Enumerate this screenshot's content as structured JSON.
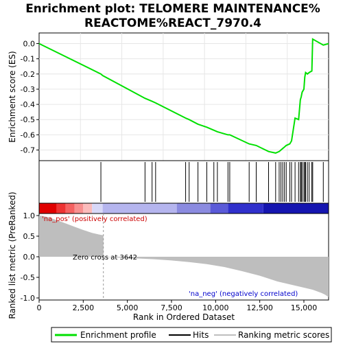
{
  "title_line1": "Enrichment plot: TELOMERE MAINTENANCE%",
  "title_line2": "REACTOME%REACT_7970.4",
  "chart_data": [
    {
      "type": "line",
      "panel": "enrichment-score",
      "ylabel": "Enrichment score (ES)",
      "ylim": [
        -0.77,
        0.07
      ],
      "yticks": [
        0.0,
        -0.1,
        -0.2,
        -0.3,
        -0.4,
        -0.5,
        -0.6,
        -0.7
      ],
      "ytick_labels": [
        "0.0",
        "-0.1",
        "-0.2",
        "-0.3",
        "-0.4",
        "-0.5",
        "-0.6",
        "-0.7"
      ],
      "xlim": [
        0,
        16400
      ],
      "grid": true,
      "color": "#00e000",
      "series": [
        {
          "name": "Enrichment profile",
          "x": [
            0,
            3500,
            3600,
            6000,
            6400,
            6600,
            8300,
            8500,
            9000,
            9500,
            9900,
            10100,
            10700,
            10800,
            11900,
            12300,
            13000,
            13400,
            13600,
            13700,
            13800,
            13900,
            14000,
            14200,
            14300,
            14500,
            14700,
            14800,
            14850,
            14900,
            15000,
            15050,
            15100,
            15200,
            15300,
            15450,
            15500,
            16100,
            16400
          ],
          "y": [
            0.0,
            -0.2,
            -0.21,
            -0.36,
            -0.38,
            -0.39,
            -0.49,
            -0.5,
            -0.53,
            -0.55,
            -0.57,
            -0.58,
            -0.6,
            -0.6,
            -0.66,
            -0.67,
            -0.71,
            -0.72,
            -0.71,
            -0.7,
            -0.69,
            -0.68,
            -0.67,
            -0.66,
            -0.64,
            -0.49,
            -0.5,
            -0.37,
            -0.35,
            -0.32,
            -0.3,
            -0.22,
            -0.19,
            -0.2,
            -0.19,
            -0.18,
            0.03,
            -0.01,
            0.0
          ]
        }
      ]
    },
    {
      "type": "scatter",
      "panel": "hits",
      "legend_label": "Hits",
      "x": [
        3500,
        6000,
        6400,
        6600,
        8300,
        8500,
        9000,
        9500,
        9900,
        10100,
        10700,
        10800,
        11900,
        12300,
        13000,
        13400,
        13600,
        13700,
        13800,
        13900,
        14000,
        14200,
        14300,
        14500,
        14700,
        14800,
        14850,
        14900,
        15000,
        15050,
        15100,
        15200,
        15300,
        15450,
        15500,
        16100,
        16400
      ]
    },
    {
      "type": "heatmap",
      "panel": "rank-color-bar",
      "colors": [
        "#e00000",
        "#ee3333",
        "#f56262",
        "#f89090",
        "#fbbbbb",
        "#d8d8f8",
        "#b5b5ee",
        "#8b8be0",
        "#5a5ad8",
        "#3030cc",
        "#1515b0"
      ],
      "breaks": [
        0,
        1000,
        1500,
        2000,
        2500,
        3000,
        3600,
        7800,
        9700,
        10700,
        12700,
        16400
      ]
    },
    {
      "type": "area",
      "panel": "ranked-metric",
      "xlabel": "Rank in Ordered Dataset",
      "ylabel": "Ranked list metric (PreRanked)",
      "ylim": [
        -1.05,
        1.05
      ],
      "yticks": [
        1.0,
        0.5,
        0.0,
        -0.5,
        -1.0
      ],
      "ytick_labels": [
        "1.0",
        "0.5",
        "0.0",
        "-0.5",
        "-1.0"
      ],
      "xlim": [
        0,
        16400
      ],
      "xticks": [
        0,
        2500,
        5000,
        7500,
        10000,
        12500,
        15000
      ],
      "xtick_labels": [
        "0",
        "2,500",
        "5,000",
        "7,500",
        "10,000",
        "12,500",
        "15,000"
      ],
      "color": "#bebebe",
      "x": [
        0,
        200,
        500,
        1000,
        1500,
        2000,
        2500,
        3000,
        3400,
        3640,
        3650,
        4500,
        5500,
        6500,
        7500,
        8500,
        9500,
        10500,
        11500,
        12500,
        13500,
        14500,
        15000,
        15500,
        16000,
        16200,
        16400
      ],
      "y": [
        1.0,
        0.99,
        0.96,
        0.89,
        0.81,
        0.73,
        0.65,
        0.58,
        0.54,
        0.52,
        0.0,
        -0.02,
        -0.04,
        -0.06,
        -0.09,
        -0.13,
        -0.18,
        -0.25,
        -0.35,
        -0.46,
        -0.6,
        -0.7,
        -0.75,
        -0.8,
        -0.88,
        -0.92,
        -0.98
      ],
      "annotations": {
        "pos": "'na_pos' (positively correlated)",
        "neg": "'na_neg' (negatively correlated)",
        "zero": "Zero cross at 3642"
      },
      "zero_cross": 3642
    }
  ],
  "legend": {
    "items": [
      {
        "label": "Enrichment profile",
        "color": "#00e000"
      },
      {
        "label": "Hits",
        "color": "#000000"
      },
      {
        "label": "Ranking metric scores",
        "color": "#bebebe"
      }
    ]
  }
}
